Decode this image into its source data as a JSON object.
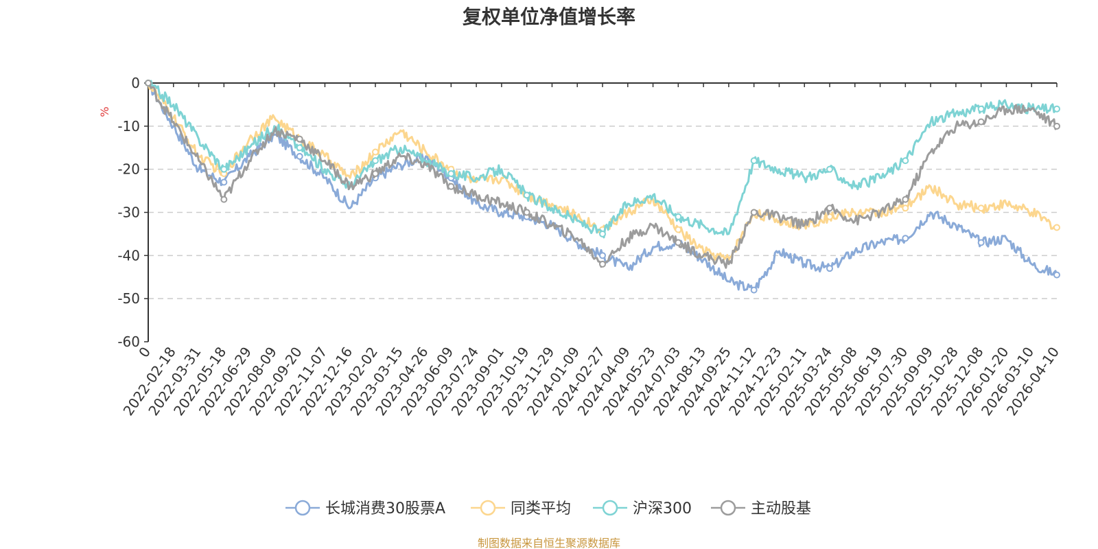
{
  "chart_data": {
    "type": "line",
    "title": "复权单位净值增长率",
    "ylabel": "%",
    "xlabel": "",
    "ylim": [
      -60,
      0
    ],
    "yticks": [
      0,
      -10,
      -20,
      -30,
      -40,
      -50,
      -60
    ],
    "categories": [
      "0",
      "2022-02-18",
      "2022-03-31",
      "2022-05-18",
      "2022-06-29",
      "2022-08-09",
      "2022-09-20",
      "2022-11-07",
      "2022-12-16",
      "2023-02-02",
      "2023-03-15",
      "2023-04-26",
      "2023-06-09",
      "2023-07-24",
      "2023-09-01",
      "2023-10-19",
      "2023-11-29",
      "2024-01-09",
      "2024-02-27",
      "2024-04-09",
      "2024-05-23",
      "2024-07-03",
      "2024-08-13",
      "2024-09-25",
      "2024-11-12",
      "2024-12-23",
      "2025-02-11",
      "2025-03-24",
      "2025-05-08",
      "2025-06-19",
      "2025-07-30",
      "2025-09-09",
      "2025-10-28",
      "2025-12-08",
      "2026-01-20",
      "2026-03-10",
      "2026-04-10"
    ],
    "legend_position": "bottom",
    "grid": true,
    "series": [
      {
        "name": "长城消费30股票A",
        "color": "#8aaad8",
        "values": [
          0,
          -10,
          -20,
          -23,
          -17,
          -12,
          -17,
          -22,
          -29,
          -22,
          -19,
          -17,
          -22,
          -28,
          -30,
          -31,
          -33,
          -37,
          -40,
          -43,
          -38,
          -37,
          -41,
          -46,
          -48,
          -39,
          -42,
          -43,
          -39,
          -37,
          -36,
          -30,
          -33,
          -37,
          -36,
          -42,
          -44.5
        ]
      },
      {
        "name": "同类平均",
        "color": "#fcd68e",
        "values": [
          0,
          -8,
          -17,
          -21,
          -13,
          -8,
          -13,
          -17,
          -22,
          -16,
          -11,
          -16,
          -20,
          -23,
          -22,
          -26,
          -28,
          -31,
          -34,
          -30,
          -27,
          -34,
          -39,
          -41,
          -30,
          -32,
          -33,
          -31,
          -30,
          -30,
          -29,
          -24,
          -28,
          -29,
          -28,
          -30,
          -33.5
        ]
      },
      {
        "name": "沪深300",
        "color": "#7ed3d4",
        "values": [
          0,
          -5,
          -13,
          -20,
          -15,
          -10,
          -15,
          -20,
          -24,
          -18,
          -15,
          -18,
          -21,
          -22,
          -20,
          -26,
          -29,
          -32,
          -35,
          -28,
          -26,
          -31,
          -33,
          -35,
          -18,
          -20,
          -22,
          -20,
          -24,
          -22,
          -18,
          -9,
          -7,
          -6,
          -5,
          -6,
          -6
        ]
      },
      {
        "name": "主动股基",
        "color": "#9c9c9c",
        "values": [
          0,
          -9,
          -18,
          -27,
          -18,
          -11,
          -13,
          -18,
          -24,
          -21,
          -17,
          -19,
          -24,
          -26,
          -28,
          -30,
          -33,
          -36,
          -42,
          -36,
          -33,
          -37,
          -40,
          -42,
          -30,
          -31,
          -33,
          -29,
          -32,
          -30,
          -27,
          -16,
          -10,
          -9,
          -6,
          -6,
          -10
        ]
      }
    ]
  },
  "source_text": "制图数据来自恒生聚源数据库",
  "colors": {
    "source_text": "#c8963e",
    "unit_label": "#e03a3a",
    "axis": "#333333",
    "grid": "#cccccc"
  }
}
